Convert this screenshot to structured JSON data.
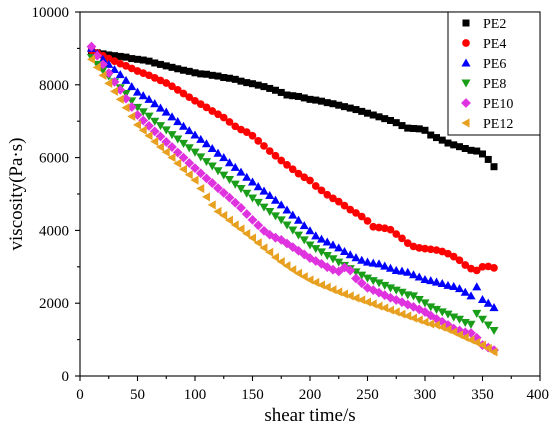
{
  "chart_data": {
    "type": "scatter",
    "xlabel": "shear time/s",
    "ylabel": "viscosity(Pa·s)",
    "xlim": [
      0,
      400
    ],
    "ylim": [
      0,
      10000
    ],
    "x_ticks": [
      0,
      50,
      100,
      150,
      200,
      250,
      300,
      350,
      400
    ],
    "y_ticks": [
      0,
      2000,
      4000,
      6000,
      8000,
      10000
    ],
    "grid": false,
    "legend": "top-right",
    "x": [
      10,
      15,
      20,
      25,
      30,
      35,
      40,
      45,
      50,
      55,
      60,
      65,
      70,
      75,
      80,
      85,
      90,
      95,
      100,
      105,
      110,
      115,
      120,
      125,
      130,
      135,
      140,
      145,
      150,
      155,
      160,
      165,
      170,
      175,
      180,
      185,
      190,
      195,
      200,
      205,
      210,
      215,
      220,
      225,
      230,
      235,
      240,
      245,
      250,
      255,
      260,
      265,
      270,
      275,
      280,
      285,
      290,
      295,
      300,
      305,
      310,
      315,
      320,
      325,
      330,
      335,
      340,
      345,
      350,
      355,
      360
    ],
    "series": [
      {
        "name": "PE2",
        "marker": "square",
        "color": "#000000",
        "values": [
          8920,
          8880,
          8850,
          8820,
          8800,
          8780,
          8760,
          8720,
          8700,
          8680,
          8650,
          8600,
          8560,
          8520,
          8480,
          8440,
          8400,
          8370,
          8330,
          8300,
          8290,
          8260,
          8240,
          8200,
          8180,
          8150,
          8100,
          8060,
          8030,
          7990,
          7950,
          7900,
          7850,
          7790,
          7720,
          7700,
          7680,
          7640,
          7600,
          7580,
          7550,
          7510,
          7480,
          7440,
          7400,
          7360,
          7320,
          7270,
          7220,
          7170,
          7120,
          7070,
          7020,
          6960,
          6880,
          6810,
          6800,
          6790,
          6750,
          6620,
          6550,
          6480,
          6400,
          6350,
          6300,
          6250,
          6200,
          6180,
          6100,
          5950,
          5750
        ]
      },
      {
        "name": "PE4",
        "marker": "circle",
        "color": "#ff0000",
        "values": [
          8950,
          8870,
          8800,
          8720,
          8650,
          8580,
          8520,
          8450,
          8380,
          8320,
          8260,
          8190,
          8120,
          8050,
          7960,
          7860,
          7760,
          7660,
          7560,
          7470,
          7380,
          7280,
          7190,
          7100,
          6980,
          6860,
          6770,
          6700,
          6600,
          6460,
          6320,
          6180,
          6050,
          5920,
          5800,
          5680,
          5560,
          5460,
          5370,
          5220,
          5100,
          4980,
          4880,
          4790,
          4680,
          4570,
          4480,
          4380,
          4260,
          4100,
          4080,
          4060,
          4020,
          3900,
          3780,
          3650,
          3560,
          3520,
          3500,
          3480,
          3460,
          3420,
          3360,
          3280,
          3180,
          3050,
          2950,
          2900,
          3000,
          3010,
          2970
        ]
      },
      {
        "name": "PE6",
        "marker": "triangle-up",
        "color": "#0000ff",
        "values": [
          9000,
          8850,
          8700,
          8560,
          8420,
          8280,
          8120,
          7950,
          7800,
          7700,
          7600,
          7480,
          7360,
          7250,
          7120,
          6990,
          6860,
          6740,
          6620,
          6500,
          6380,
          6250,
          6120,
          6000,
          5860,
          5730,
          5600,
          5460,
          5330,
          5200,
          5080,
          4960,
          4830,
          4700,
          4560,
          4420,
          4280,
          4130,
          3990,
          3850,
          3760,
          3680,
          3600,
          3520,
          3420,
          3330,
          3250,
          3180,
          3130,
          3100,
          3080,
          3020,
          2960,
          2900,
          2880,
          2850,
          2780,
          2720,
          2650,
          2620,
          2580,
          2540,
          2490,
          2460,
          2400,
          2300,
          2200,
          2450,
          2100,
          2000,
          1880
        ]
      },
      {
        "name": "PE8",
        "marker": "triangle-down",
        "color": "#1a9e1a",
        "values": [
          8750,
          8560,
          8400,
          8240,
          8080,
          7920,
          7760,
          7560,
          7380,
          7260,
          7140,
          7000,
          6880,
          6760,
          6630,
          6510,
          6390,
          6270,
          6150,
          6020,
          5890,
          5770,
          5640,
          5520,
          5400,
          5270,
          5150,
          5020,
          4890,
          4770,
          4640,
          4520,
          4400,
          4290,
          4150,
          4010,
          3870,
          3740,
          3600,
          3500,
          3410,
          3310,
          3220,
          3130,
          3040,
          2950,
          2860,
          2770,
          2690,
          2620,
          2560,
          2490,
          2420,
          2360,
          2300,
          2230,
          2200,
          2100,
          2010,
          1900,
          1830,
          1760,
          1700,
          1620,
          1560,
          1470,
          1420,
          1720,
          1560,
          1400,
          1250
        ]
      },
      {
        "name": "PE10",
        "marker": "diamond",
        "color": "#e033e0",
        "values": [
          9050,
          8800,
          8560,
          8320,
          8080,
          7860,
          7620,
          7390,
          7170,
          7020,
          6870,
          6720,
          6580,
          6430,
          6290,
          6140,
          6000,
          5850,
          5710,
          5570,
          5430,
          5300,
          5160,
          5030,
          4900,
          4760,
          4620,
          4450,
          4290,
          4140,
          3990,
          3880,
          3800,
          3740,
          3640,
          3540,
          3440,
          3340,
          3240,
          3160,
          3080,
          2990,
          2920,
          2870,
          2980,
          2900,
          2680,
          2550,
          2420,
          2360,
          2290,
          2220,
          2150,
          2090,
          2030,
          1960,
          1900,
          1830,
          1760,
          1660,
          1570,
          1490,
          1400,
          1300,
          1250,
          1200,
          1180,
          1050,
          850,
          780,
          710
        ]
      },
      {
        "name": "PE12",
        "marker": "triangle-left",
        "color": "#e8a020",
        "values": [
          8700,
          8480,
          8260,
          8040,
          7820,
          7600,
          7370,
          7130,
          6900,
          6750,
          6600,
          6440,
          6290,
          6150,
          6000,
          5840,
          5680,
          5530,
          5380,
          5150,
          4920,
          4700,
          4520,
          4410,
          4280,
          4150,
          4040,
          3910,
          3790,
          3660,
          3520,
          3400,
          3260,
          3140,
          3030,
          2920,
          2820,
          2730,
          2640,
          2570,
          2500,
          2440,
          2370,
          2310,
          2250,
          2200,
          2140,
          2090,
          2030,
          1980,
          1920,
          1870,
          1810,
          1760,
          1700,
          1650,
          1590,
          1540,
          1480,
          1430,
          1400,
          1340,
          1280,
          1210,
          1130,
          1060,
          990,
          920,
          850,
          760,
          660
        ]
      }
    ]
  }
}
